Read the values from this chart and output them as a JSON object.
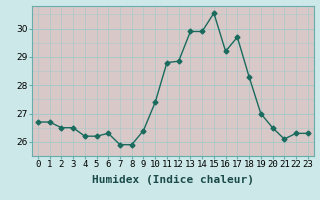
{
  "x": [
    0,
    1,
    2,
    3,
    4,
    5,
    6,
    7,
    8,
    9,
    10,
    11,
    12,
    13,
    14,
    15,
    16,
    17,
    18,
    19,
    20,
    21,
    22,
    23
  ],
  "y": [
    26.7,
    26.7,
    26.5,
    26.5,
    26.2,
    26.2,
    26.3,
    25.9,
    25.9,
    26.4,
    27.4,
    28.8,
    28.85,
    29.9,
    29.9,
    30.55,
    29.2,
    29.7,
    28.3,
    27.0,
    26.5,
    26.1,
    26.3,
    26.3
  ],
  "line_color": "#1a6b5e",
  "marker": "D",
  "marker_size": 2.5,
  "bg_color": "#cce8e8",
  "plot_bg_color": "#cce8e8",
  "vband_color": "#d8c8c8",
  "hgrid_color": "#a8c8c8",
  "xlabel": "Humidex (Indice chaleur)",
  "xlabel_fontsize": 8,
  "xtick_labels": [
    "0",
    "1",
    "2",
    "3",
    "4",
    "5",
    "6",
    "7",
    "8",
    "9",
    "10",
    "11",
    "12",
    "13",
    "14",
    "15",
    "16",
    "17",
    "18",
    "19",
    "20",
    "21",
    "22",
    "23"
  ],
  "ytick_values": [
    26,
    27,
    28,
    29,
    30
  ],
  "ylim": [
    25.5,
    30.8
  ],
  "xlim": [
    -0.5,
    23.5
  ],
  "tick_fontsize": 6.5
}
